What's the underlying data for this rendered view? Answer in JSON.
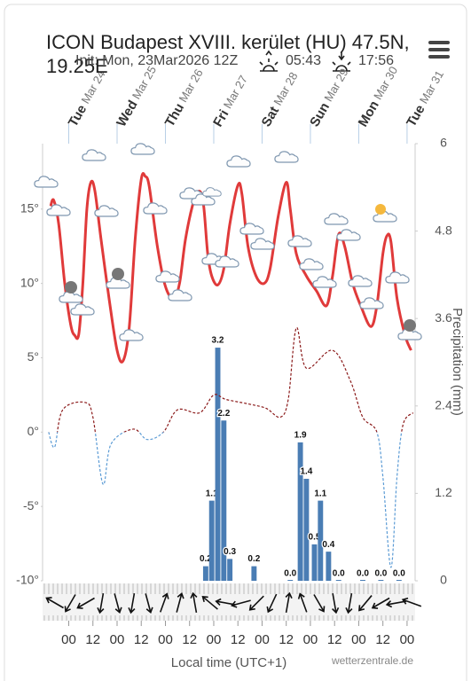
{
  "chart_data": {
    "type": "meteogram",
    "title": "ICON Budapest XVIII. kerület (HU) 47.5N, 19.25E",
    "subtitle": "Init: Mon, 23Mar2026 12Z",
    "sunrise": "05:43",
    "sunset": "17:56",
    "x_label": "Local time (UTC+1)",
    "y2_label": "Precipitation (mm)",
    "source": "wetterzentrale.de",
    "xlim": [
      -13,
      172
    ],
    "xticks": [
      {
        "value": 0,
        "label": "00"
      },
      {
        "value": 12,
        "label": "12"
      },
      {
        "value": 24,
        "label": "00"
      },
      {
        "value": 36,
        "label": "12"
      },
      {
        "value": 48,
        "label": "00"
      },
      {
        "value": 60,
        "label": "12"
      },
      {
        "value": 72,
        "label": "00"
      },
      {
        "value": 84,
        "label": "12"
      },
      {
        "value": 96,
        "label": "00"
      },
      {
        "value": 108,
        "label": "12"
      },
      {
        "value": 120,
        "label": "00"
      },
      {
        "value": 132,
        "label": "12"
      },
      {
        "value": 144,
        "label": "00"
      },
      {
        "value": 156,
        "label": "12"
      },
      {
        "value": 168,
        "label": "00"
      }
    ],
    "day_labels": [
      {
        "value": 0,
        "weekday": "Tue",
        "date": "Mar 24"
      },
      {
        "value": 24,
        "weekday": "Wed",
        "date": "Mar 25"
      },
      {
        "value": 48,
        "weekday": "Thu",
        "date": "Mar 26"
      },
      {
        "value": 72,
        "weekday": "Fri",
        "date": "Mar 27"
      },
      {
        "value": 96,
        "weekday": "Sat",
        "date": "Mar 28"
      },
      {
        "value": 120,
        "weekday": "Sun",
        "date": "Mar 29"
      },
      {
        "value": 144,
        "weekday": "Mon",
        "date": "Mar 30"
      },
      {
        "value": 168,
        "weekday": "Tue",
        "date": "Mar 31"
      }
    ],
    "ylim": [
      -10,
      19.4
    ],
    "yticks": [
      {
        "value": -10,
        "label": "-10°"
      },
      {
        "value": -5,
        "label": "-5°"
      },
      {
        "value": 0,
        "label": "0°"
      },
      {
        "value": 5,
        "label": "5°"
      },
      {
        "value": 10,
        "label": "10°"
      },
      {
        "value": 15,
        "label": "15°"
      }
    ],
    "y2lim": [
      0,
      6
    ],
    "y2ticks": [
      0,
      1.2,
      2.4,
      3.6,
      4.8,
      6
    ],
    "grid": false,
    "series": [
      {
        "kind": "line",
        "color": "#e03a3a",
        "x": [
          -9,
          -7.5,
          -5,
          -2,
          1,
          3,
          5,
          7,
          9,
          11,
          13,
          16,
          20,
          24,
          27,
          30,
          33,
          36,
          38,
          40,
          44,
          48,
          52,
          55,
          58,
          62,
          65,
          67,
          69,
          71,
          74,
          77,
          80,
          84,
          86,
          89,
          93,
          97,
          100,
          104,
          108,
          110,
          113,
          118,
          123,
          128,
          131,
          134,
          137,
          141,
          145,
          150,
          153,
          156,
          158,
          160,
          163,
          167,
          170
        ],
        "values": [
          15.2,
          15.6,
          14,
          10,
          7.2,
          6.5,
          6.6,
          10,
          15,
          16.8,
          16.2,
          13,
          9,
          5.5,
          4.8,
          7,
          13,
          17,
          17.2,
          16.5,
          12.5,
          9.8,
          9,
          10,
          13,
          15.5,
          16.2,
          15.2,
          12,
          10.5,
          9.9,
          11,
          14,
          16.6,
          16,
          12.5,
          10.5,
          10,
          11,
          14.5,
          16.8,
          15,
          12,
          10.5,
          9.5,
          8.5,
          10.5,
          13.3,
          12.5,
          10,
          8.5,
          7.1,
          8.5,
          12,
          13.2,
          12.8,
          9,
          6.5,
          5.5
        ]
      },
      {
        "kind": "dashed",
        "color": "#8b1a1a",
        "color_below": "#5b9bd5",
        "x": [
          -10,
          -7,
          -3,
          8,
          12,
          17,
          21,
          32,
          39,
          47,
          54,
          65,
          72,
          78,
          89,
          98,
          105,
          109,
          113,
          118,
          131,
          140,
          146,
          153,
          156,
          160,
          163,
          166,
          171
        ],
        "values": [
          0,
          -1,
          1.5,
          2,
          1,
          -3.5,
          -0.8,
          0.2,
          -0.5,
          0,
          1.5,
          1.3,
          2.5,
          2.2,
          1.9,
          1.6,
          1,
          2.2,
          7,
          4.3,
          5.5,
          3.4,
          1,
          0,
          -3,
          -9.1,
          -3,
          0.5,
          1.3
        ]
      },
      {
        "kind": "bar",
        "axis": "y2",
        "color": "#4a7db4",
        "x": [
          68,
          71,
          74,
          77,
          80,
          92,
          110,
          115,
          118,
          122,
          125,
          129,
          134,
          146,
          155,
          164
        ],
        "values": [
          0.2,
          1.1,
          3.2,
          2.2,
          0.3,
          0.2,
          0,
          1.9,
          1.4,
          0.5,
          1.1,
          0.4,
          0,
          0,
          0,
          0
        ],
        "value_labels": [
          "0.2",
          "1.1",
          "3.2",
          "2.2",
          "0.3",
          "0.2",
          "0.0",
          "1.9",
          "1.4",
          "0.5",
          "1.1",
          "0.4",
          "0.0",
          "0.0",
          "0.0",
          "0.0"
        ]
      }
    ]
  }
}
